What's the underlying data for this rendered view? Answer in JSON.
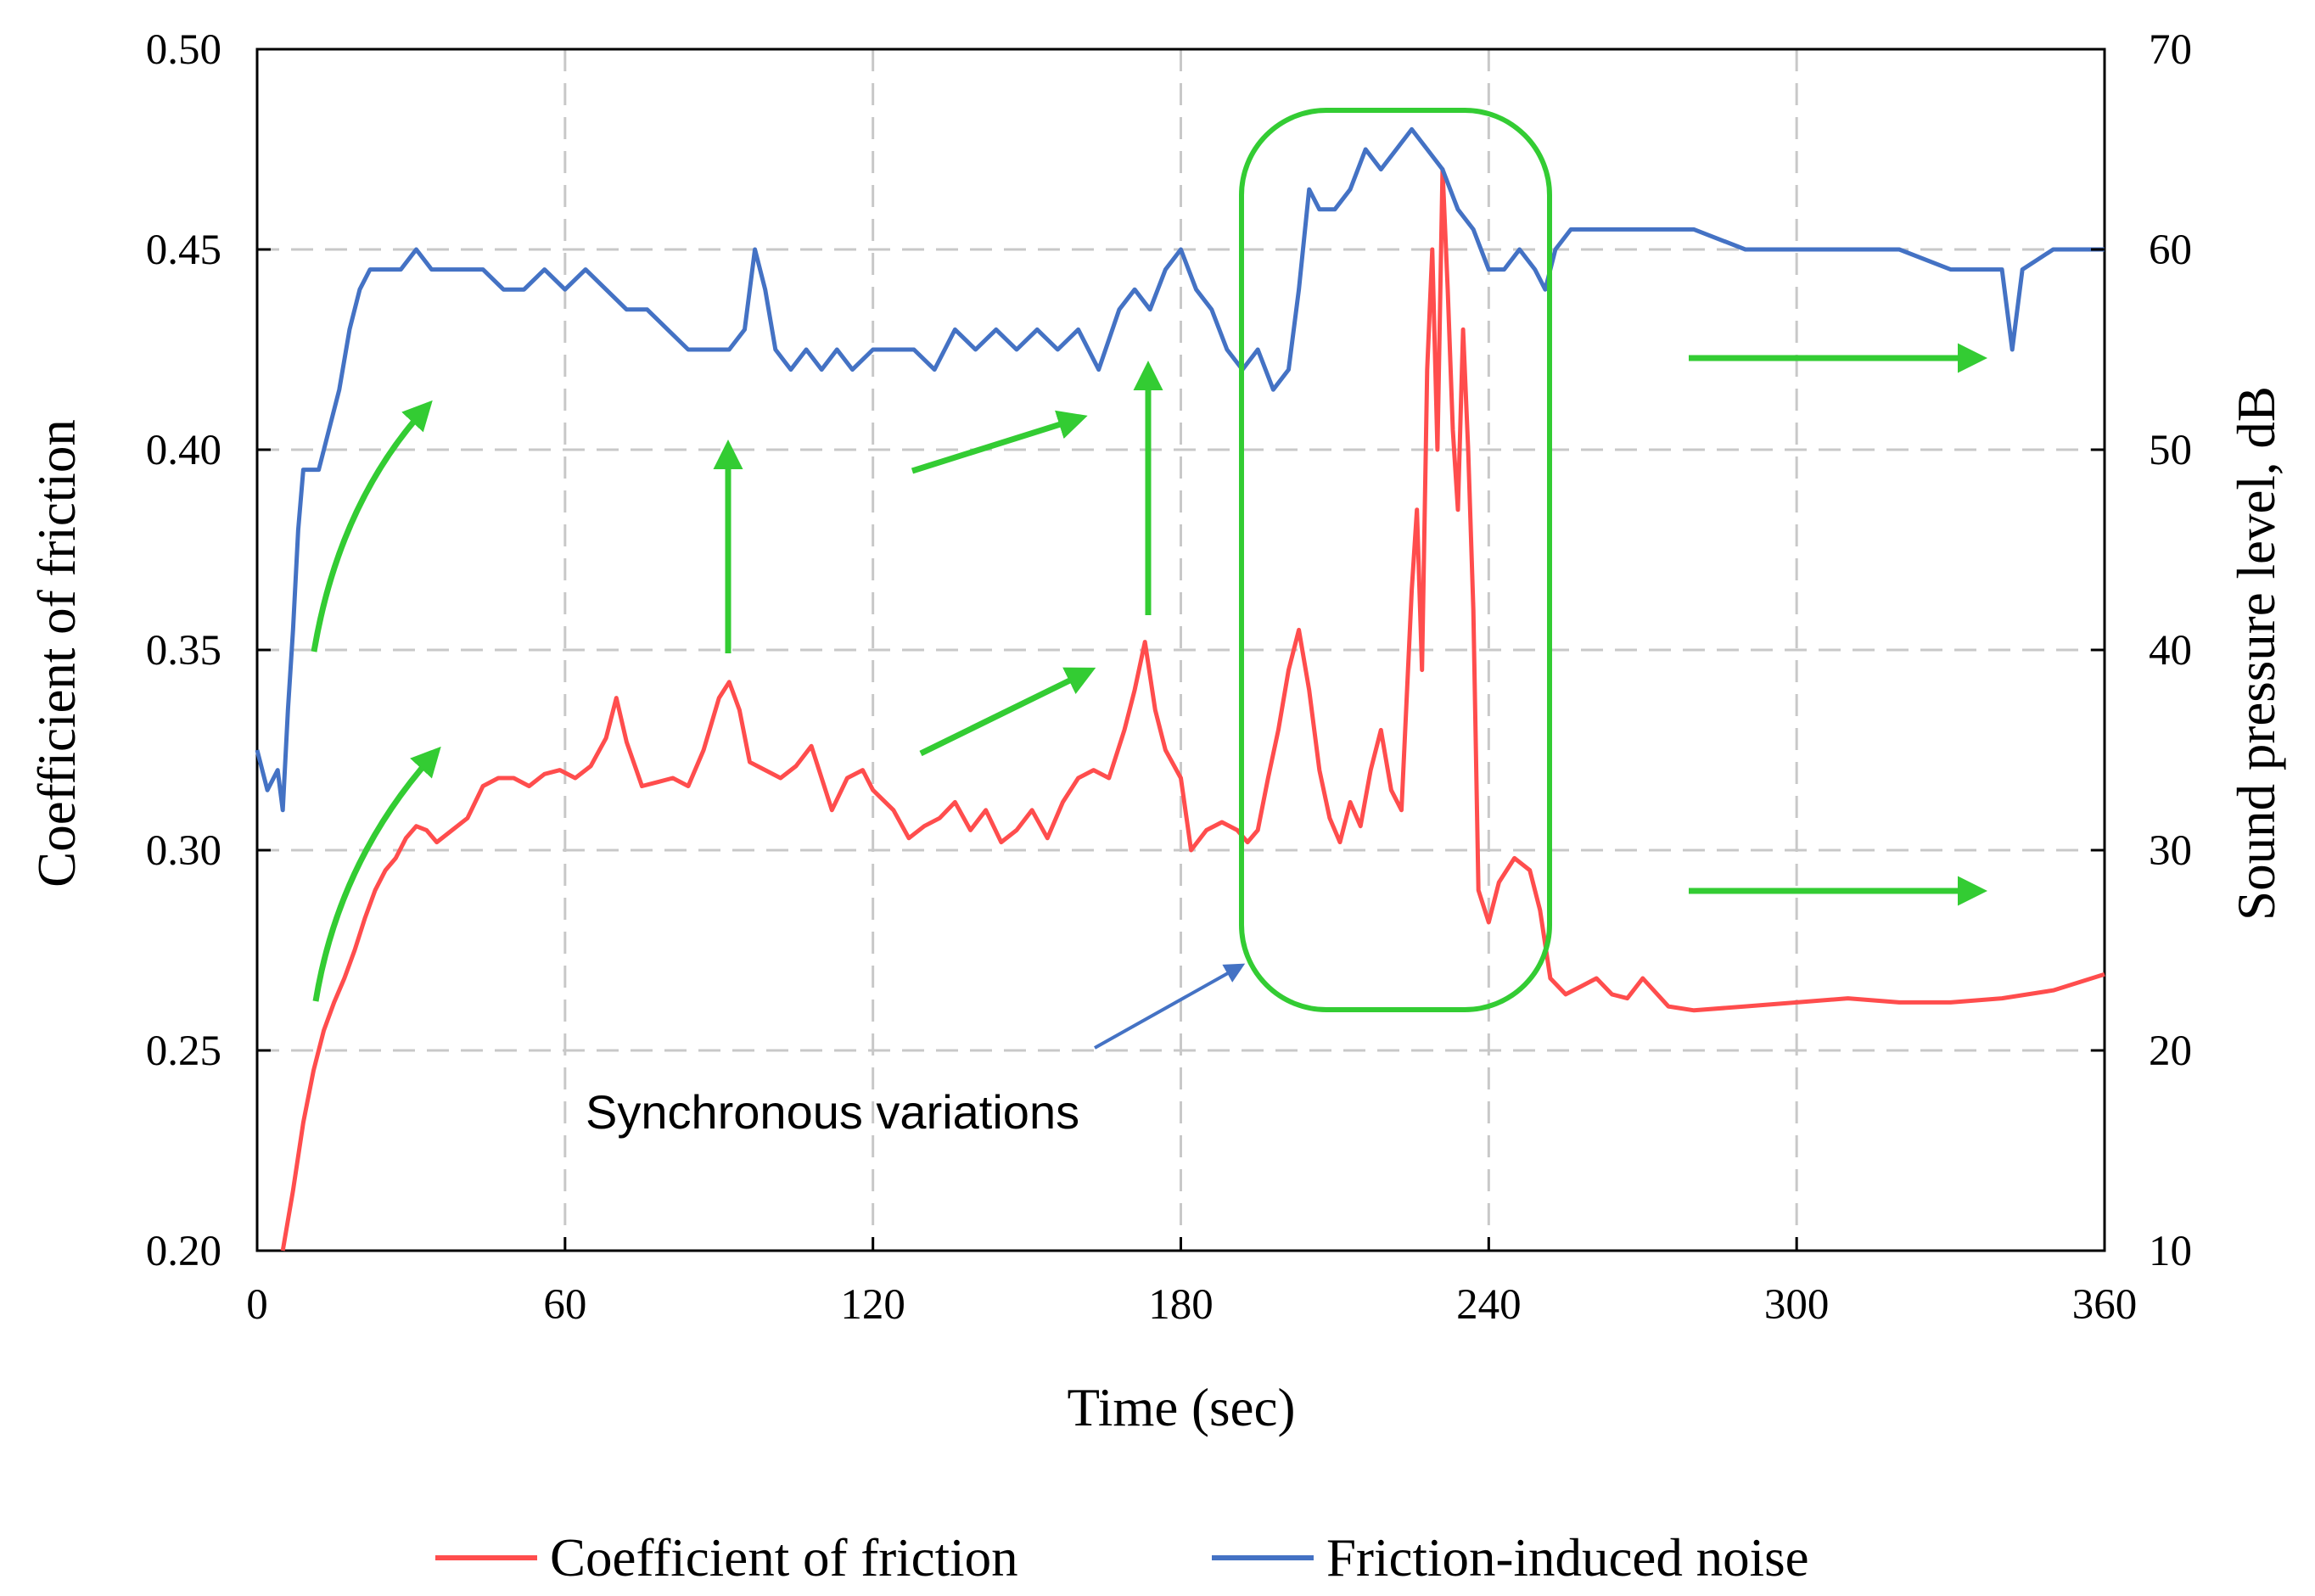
{
  "chart_data": {
    "type": "line",
    "title": "",
    "xlabel": "Time (sec)",
    "ylabel": "Coefficient of friction",
    "y2label": "Sound pressure level, dB",
    "xlim": [
      0,
      360
    ],
    "ylim": [
      0.2,
      0.5
    ],
    "y2lim": [
      10,
      70
    ],
    "xticks": [
      "0",
      "60",
      "120",
      "180",
      "240",
      "300",
      "360"
    ],
    "yticks": [
      "0.20",
      "0.25",
      "0.30",
      "0.35",
      "0.40",
      "0.45",
      "0.50"
    ],
    "y2ticks": [
      "10",
      "20",
      "30",
      "40",
      "50",
      "60",
      "70"
    ],
    "grid": true,
    "legend_position": "bottom",
    "annotation": "Synchronous variations",
    "colors": {
      "friction": "#ff4d4d",
      "noise": "#4472c4",
      "arrow": "#33cc33",
      "pointer": "#4472c4",
      "highlight": "#33cc33"
    },
    "series": [
      {
        "name": "Coefficient of friction",
        "axis": "left",
        "x": [
          5,
          7,
          9,
          11,
          13,
          15,
          17,
          19,
          21,
          23,
          25,
          27,
          29,
          31,
          33,
          35,
          38,
          41,
          44,
          47,
          50,
          53,
          56,
          59,
          62,
          65,
          68,
          70,
          72,
          75,
          78,
          81,
          84,
          87,
          90,
          92,
          94,
          96,
          99,
          102,
          105,
          108,
          110,
          112,
          115,
          118,
          120,
          124,
          127,
          130,
          133,
          136,
          139,
          142,
          145,
          148,
          151,
          154,
          157,
          160,
          163,
          166,
          169,
          171,
          173,
          175,
          177,
          180,
          182,
          185,
          188,
          191,
          193,
          195,
          197,
          199,
          201,
          203,
          205,
          207,
          209,
          211,
          213,
          215,
          217,
          219,
          221,
          223,
          225,
          226,
          227,
          228,
          229,
          230,
          231,
          232,
          233,
          234,
          235,
          236,
          237,
          238,
          240,
          242,
          245,
          248,
          250,
          252,
          255,
          258,
          261,
          264,
          267,
          270,
          275,
          280,
          290,
          300,
          310,
          320,
          330,
          340,
          350,
          360
        ],
        "values": [
          0.2,
          0.215,
          0.232,
          0.245,
          0.255,
          0.262,
          0.268,
          0.275,
          0.283,
          0.29,
          0.295,
          0.298,
          0.303,
          0.306,
          0.305,
          0.302,
          0.305,
          0.308,
          0.316,
          0.318,
          0.318,
          0.316,
          0.319,
          0.32,
          0.318,
          0.321,
          0.328,
          0.338,
          0.327,
          0.316,
          0.317,
          0.318,
          0.316,
          0.325,
          0.338,
          0.342,
          0.335,
          0.322,
          0.32,
          0.318,
          0.321,
          0.326,
          0.318,
          0.31,
          0.318,
          0.32,
          0.315,
          0.31,
          0.303,
          0.306,
          0.308,
          0.312,
          0.305,
          0.31,
          0.302,
          0.305,
          0.31,
          0.303,
          0.312,
          0.318,
          0.32,
          0.318,
          0.33,
          0.34,
          0.352,
          0.335,
          0.325,
          0.318,
          0.3,
          0.305,
          0.307,
          0.305,
          0.302,
          0.305,
          0.318,
          0.33,
          0.345,
          0.355,
          0.34,
          0.32,
          0.308,
          0.302,
          0.312,
          0.306,
          0.32,
          0.33,
          0.315,
          0.31,
          0.365,
          0.385,
          0.345,
          0.42,
          0.45,
          0.4,
          0.47,
          0.44,
          0.405,
          0.385,
          0.43,
          0.4,
          0.36,
          0.29,
          0.282,
          0.292,
          0.298,
          0.295,
          0.285,
          0.268,
          0.264,
          0.266,
          0.268,
          0.264,
          0.263,
          0.268,
          0.261,
          0.26,
          0.261,
          0.262,
          0.263,
          0.262,
          0.262,
          0.263,
          0.265,
          0.269
        ]
      },
      {
        "name": "Friction-induced noise",
        "axis": "right",
        "x": [
          0,
          2,
          4,
          5,
          6,
          7,
          8,
          9,
          10,
          12,
          14,
          16,
          18,
          20,
          22,
          25,
          28,
          31,
          34,
          37,
          40,
          44,
          48,
          52,
          56,
          60,
          64,
          68,
          72,
          76,
          80,
          84,
          88,
          92,
          95,
          97,
          99,
          101,
          104,
          107,
          110,
          113,
          116,
          120,
          124,
          128,
          132,
          136,
          140,
          144,
          148,
          152,
          156,
          160,
          164,
          168,
          171,
          174,
          177,
          180,
          183,
          186,
          189,
          192,
          195,
          198,
          201,
          203,
          205,
          207,
          210,
          213,
          216,
          219,
          222,
          225,
          228,
          231,
          234,
          237,
          240,
          243,
          246,
          249,
          251,
          253,
          256,
          260,
          265,
          270,
          275,
          280,
          290,
          300,
          310,
          320,
          330,
          340,
          342,
          344,
          350,
          360
        ],
        "values": [
          35,
          33,
          34,
          32,
          37,
          41,
          46,
          49,
          49,
          49,
          51,
          53,
          56,
          58,
          59,
          59,
          59,
          60,
          59,
          59,
          59,
          59,
          58,
          58,
          59,
          58,
          59,
          58,
          57,
          57,
          56,
          55,
          55,
          55,
          56,
          60,
          58,
          55,
          54,
          55,
          54,
          55,
          54,
          55,
          55,
          55,
          54,
          56,
          55,
          56,
          55,
          56,
          55,
          56,
          54,
          57,
          58,
          57,
          59,
          60,
          58,
          57,
          55,
          54,
          55,
          53,
          54,
          58,
          63,
          62,
          62,
          63,
          65,
          64,
          65,
          66,
          65,
          64,
          62,
          61,
          59,
          59,
          60,
          59,
          58,
          60,
          61,
          61,
          61,
          61,
          61,
          61,
          60,
          60,
          60,
          60,
          59,
          59,
          55,
          59,
          60,
          60
        ]
      }
    ]
  }
}
